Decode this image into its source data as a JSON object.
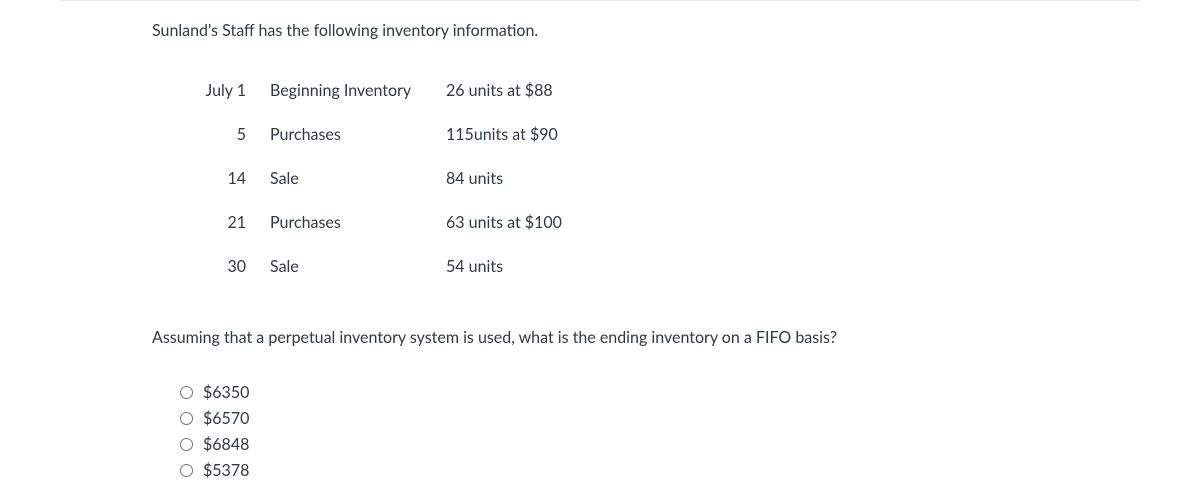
{
  "intro": "Sunland's Staff has the following inventory information.",
  "table": {
    "rows": [
      {
        "date": "July 1",
        "desc": "Beginning Inventory",
        "detail": "26 units at $88"
      },
      {
        "date": "5",
        "desc": "Purchases",
        "detail": "115units at $90"
      },
      {
        "date": "14",
        "desc": "Sale",
        "detail": "84 units"
      },
      {
        "date": "21",
        "desc": "Purchases",
        "detail": "63 units at $100"
      },
      {
        "date": "30",
        "desc": "Sale",
        "detail": "54 units"
      }
    ]
  },
  "question": "Assuming that a perpetual inventory system is used, what is the ending inventory on a FIFO basis?",
  "options": [
    {
      "label": "$6350"
    },
    {
      "label": "$6570"
    },
    {
      "label": "$6848"
    },
    {
      "label": "$5378"
    }
  ]
}
